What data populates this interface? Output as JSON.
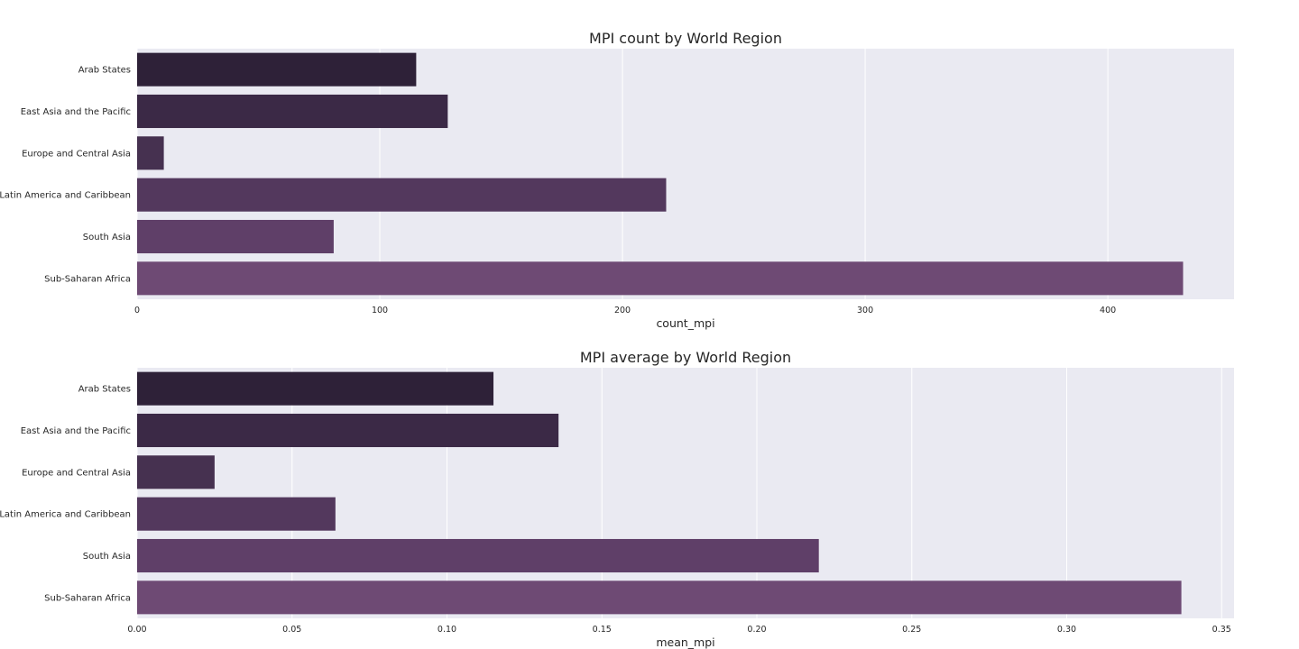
{
  "chart_data": [
    {
      "type": "bar",
      "orientation": "horizontal",
      "title": "MPI count by World Region",
      "xlabel": "count_mpi",
      "ylabel": "",
      "categories": [
        "Arab States",
        "East Asia and the Pacific",
        "Europe and Central Asia",
        "Latin America and Caribbean",
        "South Asia",
        "Sub-Saharan Africa"
      ],
      "values": [
        115,
        128,
        11,
        218,
        81,
        431
      ],
      "xlim": [
        0,
        452
      ],
      "xticks": [
        0,
        100,
        200,
        300,
        400
      ],
      "xtick_labels": [
        "0",
        "100",
        "200",
        "300",
        "400"
      ],
      "grid": true,
      "colors": [
        "#2e2138",
        "#3b2946",
        "#463150",
        "#53385d",
        "#5f3f68",
        "#6e4a74"
      ]
    },
    {
      "type": "bar",
      "orientation": "horizontal",
      "title": "MPI average by World Region",
      "xlabel": "mean_mpi",
      "ylabel": "",
      "categories": [
        "Arab States",
        "East Asia and the Pacific",
        "Europe and Central Asia",
        "Latin America and Caribbean",
        "South Asia",
        "Sub-Saharan Africa"
      ],
      "values": [
        0.115,
        0.136,
        0.025,
        0.064,
        0.22,
        0.337
      ],
      "xlim": [
        0,
        0.354
      ],
      "xticks": [
        0,
        0.05,
        0.1,
        0.15,
        0.2,
        0.25,
        0.3,
        0.35
      ],
      "xtick_labels": [
        "0.00",
        "0.05",
        "0.10",
        "0.15",
        "0.20",
        "0.25",
        "0.30",
        "0.35"
      ],
      "grid": true,
      "colors": [
        "#2e2138",
        "#3b2946",
        "#463150",
        "#53385d",
        "#5f3f68",
        "#6e4a74"
      ]
    }
  ]
}
